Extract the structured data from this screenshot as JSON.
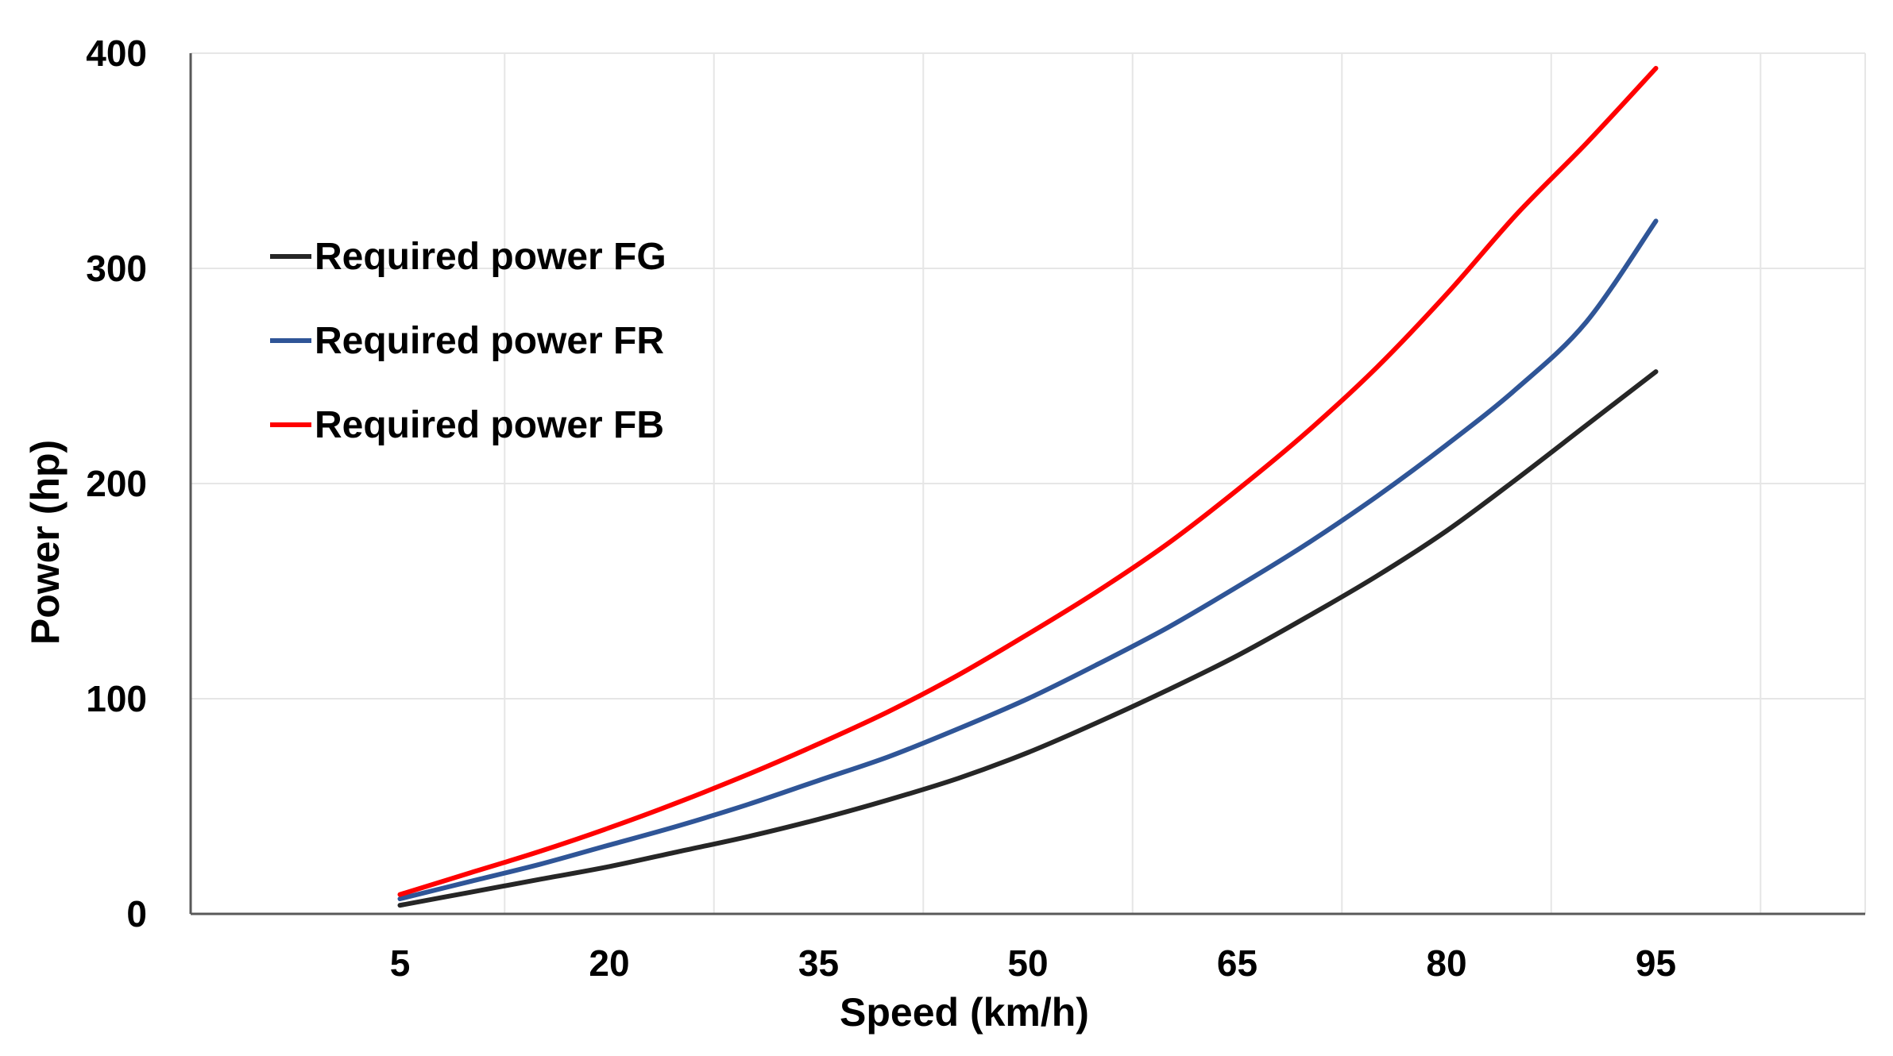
{
  "chart_data": {
    "type": "line",
    "title": "",
    "xlabel": "Speed (km/h)",
    "ylabel": "Power (hp)",
    "xlim": [
      -10,
      110
    ],
    "ylim": [
      0,
      400
    ],
    "xticks": [
      5,
      20,
      35,
      50,
      65,
      80,
      95
    ],
    "yticks": [
      0,
      100,
      200,
      300,
      400
    ],
    "grid": true,
    "legend_position": "upper-left",
    "x": [
      5,
      10,
      15,
      20,
      25,
      30,
      35,
      40,
      45,
      50,
      55,
      60,
      65,
      70,
      75,
      80,
      85,
      90,
      95
    ],
    "series": [
      {
        "name": "Required power FG",
        "color": "#262626",
        "values": [
          4,
          10,
          16,
          22,
          29,
          36,
          44,
          53,
          63,
          75,
          89,
          104,
          120,
          138,
          157,
          178,
          202,
          227,
          252
        ]
      },
      {
        "name": "Required power FR",
        "color": "#2F5597",
        "values": [
          7,
          15,
          23,
          32,
          41,
          51,
          62,
          73,
          86,
          100,
          116,
          133,
          152,
          172,
          194,
          218,
          244,
          275,
          322
        ]
      },
      {
        "name": "Required power FB",
        "color": "#FF0000",
        "values": [
          9,
          19,
          29,
          40,
          52,
          65,
          79,
          94,
          111,
          130,
          150,
          172,
          197,
          224,
          254,
          288,
          325,
          358,
          393
        ]
      }
    ]
  }
}
